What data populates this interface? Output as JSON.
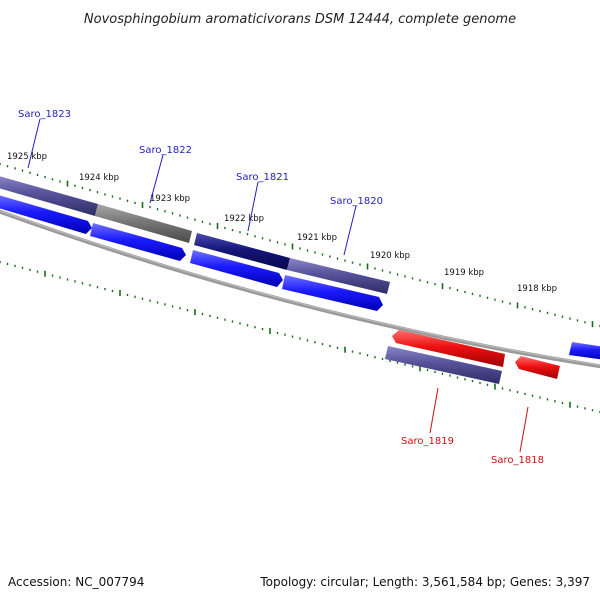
{
  "title": "Novosphingobium aromaticivorans DSM 12444, complete genome",
  "footer": {
    "accession": "Accession: NC_007794",
    "summary": "Topology: circular; Length: 3,561,584 bp; Genes: 3,397"
  },
  "colors": {
    "forward_cds": "#1a1aff",
    "reverse_cds": "#ee1111",
    "gene_purple": "#55529a",
    "gene_gray": "#777777",
    "gene_navy": "#15157a",
    "backbone": "#8a8a8a",
    "tick": "#1a6b1a",
    "forward_label": "#1f1fbf",
    "reverse_label": "#cc1111"
  },
  "scale": {
    "kbp_labels": [
      "1925 kbp",
      "1924 kbp",
      "1923 kbp",
      "1922 kbp",
      "1921 kbp",
      "1920 kbp",
      "1919 kbp",
      "1918 kbp"
    ]
  },
  "genes": [
    {
      "label": "Saro_1823",
      "strand": "forward"
    },
    {
      "label": "Saro_1822",
      "strand": "forward"
    },
    {
      "label": "Saro_1821",
      "strand": "forward"
    },
    {
      "label": "Saro_1820",
      "strand": "forward"
    },
    {
      "label": "Saro_1819",
      "strand": "reverse"
    },
    {
      "label": "Saro_1818",
      "strand": "reverse"
    }
  ]
}
